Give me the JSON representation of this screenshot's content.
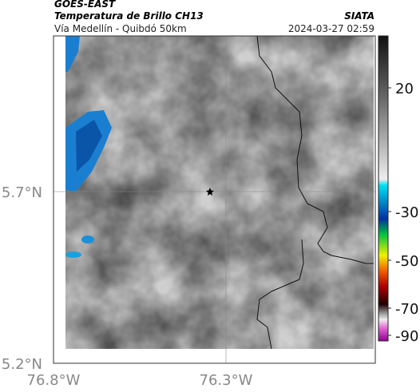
{
  "header": {
    "source": "GOES-EAST",
    "title": "Temperatura de Brillo CH13",
    "brand": "SIATA",
    "subtitle": "Vía Medellín - Quibdó 50km",
    "timestamp": "2024-03-27 02:59"
  },
  "map": {
    "lat_ticks": [
      "5.7°N",
      "5.2°N"
    ],
    "lon_ticks": [
      "76.8°W",
      "76.3°W"
    ]
  },
  "colorbar": {
    "ticks": [
      20,
      -30,
      -50,
      -70,
      -90
    ]
  }
}
